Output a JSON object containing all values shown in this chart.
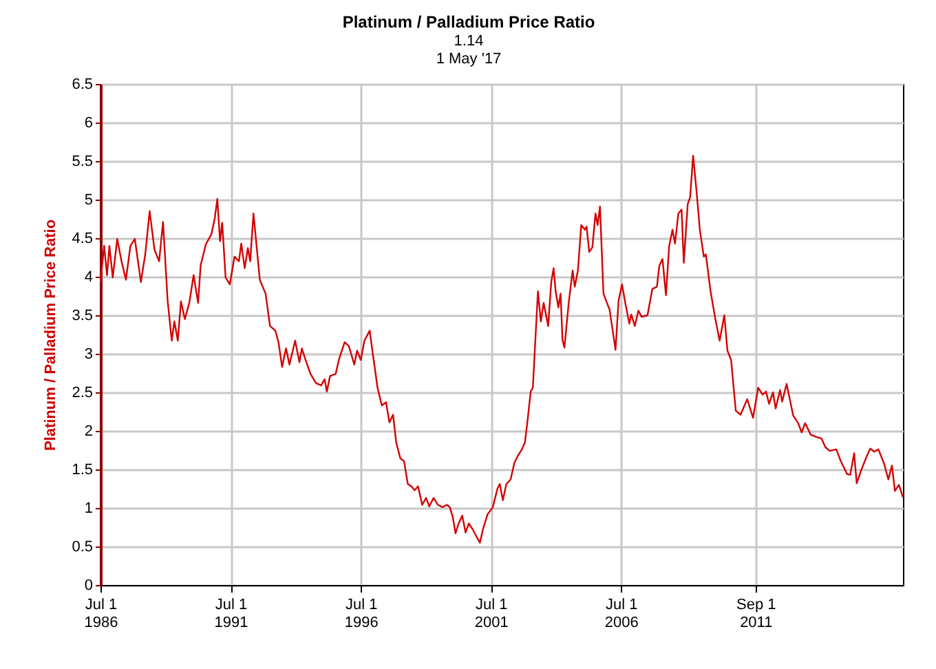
{
  "chart_data": {
    "type": "line",
    "title": "Platinum / Palladium Price Ratio",
    "subtitle": "1.14\n1 May '17",
    "ylabel": "Platinum / Palladium Price Ratio",
    "x": [
      "1986-07-01",
      "1986-08-21",
      "1986-10-01",
      "1986-11-03",
      "1986-12-20",
      "1987-02-21",
      "1987-04-22",
      "1987-06-23",
      "1987-08-25",
      "1987-10-26",
      "1988-01-19",
      "1988-03-20",
      "1988-05-21",
      "1988-07-28",
      "1988-10-01",
      "1988-11-25",
      "1989-01-28",
      "1989-03-27",
      "1989-05-03",
      "1989-06-20",
      "1989-08-03",
      "1989-09-27",
      "1989-11-28",
      "1990-01-28",
      "1990-04-01",
      "1990-05-07",
      "1990-07-19",
      "1990-10-04",
      "1990-11-21",
      "1990-12-27",
      "1991-02-03",
      "1991-03-05",
      "1991-04-22",
      "1991-06-20",
      "1991-08-25",
      "1991-10-26",
      "1991-11-28",
      "1992-01-15",
      "1992-02-28",
      "1992-04-01",
      "1992-05-17",
      "1992-08-14",
      "1992-11-03",
      "1993-01-04",
      "1993-03-20",
      "1993-05-03",
      "1993-06-23",
      "1993-08-17",
      "1993-10-04",
      "1993-12-23",
      "1994-02-21",
      "1994-03-27",
      "1994-05-07",
      "1994-07-26",
      "1994-10-11",
      "1994-12-23",
      "1995-02-10",
      "1995-03-13",
      "1995-04-26",
      "1995-07-15",
      "1995-08-28",
      "1995-11-17",
      "1996-01-15",
      "1996-04-01",
      "1996-05-10",
      "1996-07-01",
      "1996-08-21",
      "1996-11-03",
      "1996-12-20",
      "1997-02-21",
      "1997-04-22",
      "1997-06-20",
      "1997-08-07",
      "1997-09-27",
      "1997-11-10",
      "1998-01-08",
      "1998-02-28",
      "1998-04-22",
      "1998-06-13",
      "1998-07-26",
      "1998-09-13",
      "1998-11-10",
      "1999-01-04",
      "1999-02-17",
      "1999-04-19",
      "1999-06-20",
      "1999-08-21",
      "1999-10-22",
      "1999-12-02",
      "2000-01-11",
      "2000-02-21",
      "2000-04-04",
      "2000-05-25",
      "2000-07-11",
      "2000-08-25",
      "2000-10-26",
      "2000-12-16",
      "2001-01-28",
      "2001-03-16",
      "2001-05-17",
      "2001-07-28",
      "2001-10-01",
      "2001-11-03",
      "2001-12-16",
      "2002-02-03",
      "2002-04-04",
      "2002-05-25",
      "2002-07-11",
      "2002-09-09",
      "2002-10-22",
      "2002-11-28",
      "2003-01-11",
      "2003-02-10",
      "2003-03-09",
      "2003-04-22",
      "2003-06-02",
      "2003-07-11",
      "2003-09-13",
      "2003-10-26",
      "2003-11-28",
      "2003-12-27",
      "2004-02-03",
      "2004-03-05",
      "2004-04-01",
      "2004-04-28",
      "2004-06-05",
      "2004-07-01",
      "2004-08-21",
      "2004-09-20",
      "2004-11-03",
      "2004-12-20",
      "2005-02-10",
      "2005-03-05",
      "2005-04-11",
      "2005-05-25",
      "2005-07-08",
      "2005-08-07",
      "2005-09-09",
      "2005-10-28",
      "2006-01-22",
      "2006-04-15",
      "2006-05-28",
      "2006-07-15",
      "2006-09-05",
      "2006-10-26",
      "2006-11-21",
      "2007-01-11",
      "2007-03-02",
      "2007-04-15",
      "2007-07-08",
      "2007-09-13",
      "2007-11-17",
      "2007-12-20",
      "2008-02-03",
      "2008-03-23",
      "2008-05-07",
      "2008-06-23",
      "2008-07-28",
      "2008-09-13",
      "2008-10-28",
      "2008-11-28",
      "2009-01-22",
      "2009-02-25",
      "2009-04-08",
      "2009-05-28",
      "2009-07-11",
      "2009-09-05",
      "2009-10-04",
      "2009-12-09",
      "2010-02-14",
      "2010-04-15",
      "2010-06-20",
      "2010-08-03",
      "2010-09-23",
      "2010-11-28",
      "2011-02-03",
      "2011-05-07",
      "2011-07-28",
      "2011-10-08",
      "2011-12-09",
      "2012-01-26",
      "2012-03-09",
      "2012-05-03",
      "2012-06-09",
      "2012-08-10",
      "2012-09-09",
      "2012-11-10",
      "2013-02-10",
      "2013-04-22",
      "2013-06-09",
      "2013-07-28",
      "2013-10-15",
      "2014-01-01",
      "2014-03-16",
      "2014-05-07",
      "2014-07-08",
      "2014-10-08",
      "2014-12-09",
      "2015-03-09",
      "2015-04-22",
      "2015-06-16",
      "2015-07-22",
      "2015-09-23",
      "2015-12-09",
      "2016-01-28",
      "2016-03-23",
      "2016-05-21",
      "2016-08-07",
      "2016-10-08",
      "2016-11-28",
      "2017-01-08",
      "2017-03-05",
      "2017-05-01"
    ],
    "series": [
      {
        "color": "#d40000",
        "values": [
          3.93,
          4.4,
          4.02,
          4.4,
          3.99,
          4.49,
          4.2,
          3.96,
          4.4,
          4.49,
          3.93,
          4.29,
          4.85,
          4.35,
          4.2,
          4.71,
          3.69,
          3.17,
          3.42,
          3.17,
          3.68,
          3.45,
          3.66,
          4.02,
          3.66,
          4.15,
          4.42,
          4.55,
          4.76,
          5.01,
          4.46,
          4.7,
          3.99,
          3.9,
          4.26,
          4.2,
          4.43,
          4.11,
          4.37,
          4.2,
          4.82,
          3.96,
          3.78,
          3.36,
          3.3,
          3.15,
          2.83,
          3.07,
          2.86,
          3.17,
          2.89,
          3.07,
          2.95,
          2.74,
          2.62,
          2.59,
          2.67,
          2.51,
          2.71,
          2.74,
          2.92,
          3.15,
          3.1,
          2.86,
          3.04,
          2.92,
          3.17,
          3.3,
          2.98,
          2.56,
          2.33,
          2.37,
          2.11,
          2.21,
          1.85,
          1.64,
          1.61,
          1.31,
          1.28,
          1.23,
          1.28,
          1.04,
          1.13,
          1.02,
          1.13,
          1.04,
          1.01,
          1.04,
          1.01,
          0.89,
          0.67,
          0.8,
          0.9,
          0.68,
          0.8,
          0.71,
          0.62,
          0.55,
          0.74,
          0.92,
          1.01,
          1.25,
          1.31,
          1.1,
          1.31,
          1.37,
          1.58,
          1.67,
          1.76,
          1.85,
          2.14,
          2.51,
          2.56,
          3.04,
          3.81,
          3.42,
          3.66,
          3.36,
          3.93,
          4.11,
          3.81,
          3.6,
          3.78,
          3.18,
          3.08,
          3.45,
          3.69,
          4.08,
          3.87,
          4.08,
          4.67,
          4.61,
          4.65,
          4.32,
          4.38,
          4.82,
          4.67,
          4.91,
          3.78,
          3.57,
          3.05,
          3.69,
          3.9,
          3.63,
          3.39,
          3.51,
          3.36,
          3.56,
          3.48,
          3.5,
          3.84,
          3.87,
          4.14,
          4.23,
          3.76,
          4.4,
          4.61,
          4.43,
          4.82,
          4.87,
          4.18,
          4.94,
          5.03,
          5.57,
          5.09,
          4.61,
          4.26,
          4.29,
          3.81,
          3.45,
          3.17,
          3.5,
          3.04,
          2.92,
          2.26,
          2.21,
          2.41,
          2.17,
          2.56,
          2.47,
          2.51,
          2.35,
          2.5,
          2.29,
          2.53,
          2.38,
          2.61,
          2.2,
          2.1,
          1.98,
          2.1,
          1.95,
          1.92,
          1.9,
          1.79,
          1.74,
          1.76,
          1.61,
          1.44,
          1.43,
          1.71,
          1.32,
          1.49,
          1.67,
          1.77,
          1.73,
          1.76,
          1.58,
          1.37,
          1.55,
          1.22,
          1.3,
          1.14
        ]
      }
    ],
    "xlim": [
      "1986-07-01",
      "2017-05-01"
    ],
    "xticks": [
      {
        "value": "1986-07-01",
        "label": "Jul 1\n1986"
      },
      {
        "value": "1991-07-01",
        "label": "Jul 1\n1991"
      },
      {
        "value": "1996-07-01",
        "label": "Jul 1\n1996"
      },
      {
        "value": "2001-07-01",
        "label": "Jul 1\n2001"
      },
      {
        "value": "2006-07-01",
        "label": "Jul 1\n2006"
      },
      {
        "value": "2011-09-01",
        "label": "Sep 1\n2011"
      }
    ],
    "ylim": [
      0,
      6.5
    ],
    "yticks": [
      0,
      0.5,
      1,
      1.5,
      2,
      2.5,
      3,
      3.5,
      4,
      4.5,
      5,
      5.5,
      6,
      6.5
    ],
    "grid": true
  }
}
